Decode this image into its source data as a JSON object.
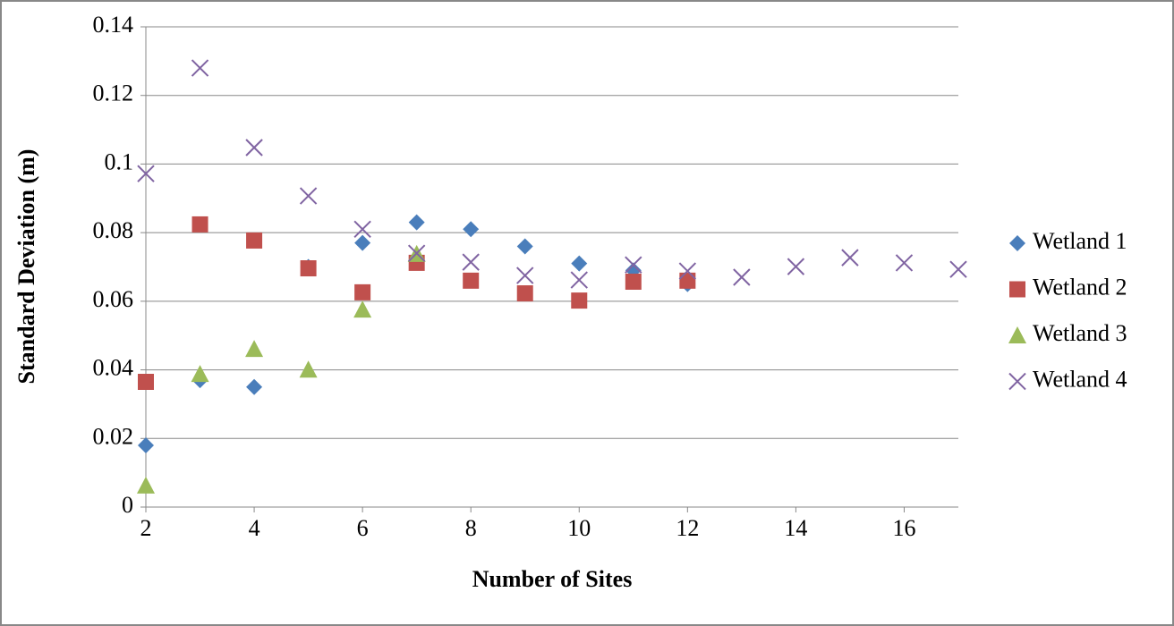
{
  "chart_data": {
    "type": "scatter",
    "x_label": "Number of Sites",
    "y_label": "Standard Deviation (m)",
    "xlim": [
      2,
      17
    ],
    "xticks": [
      2,
      4,
      6,
      8,
      10,
      12,
      14,
      16
    ],
    "ylim": [
      0,
      0.14
    ],
    "yticks": [
      0,
      0.02,
      0.04,
      0.06,
      0.08,
      0.1,
      0.12,
      0.14
    ],
    "grid": true,
    "legend": "right",
    "series": [
      {
        "name": "Wetland 1",
        "color": "#4a7ebb",
        "marker": "diamond",
        "x": [
          2,
          3,
          4,
          5,
          6,
          7,
          8,
          9,
          10,
          11,
          12
        ],
        "values": [
          0.018,
          0.037,
          0.035,
          0.07,
          0.077,
          0.083,
          0.081,
          0.076,
          0.071,
          0.069,
          0.065
        ]
      },
      {
        "name": "Wetland 2",
        "color": "#c0504d",
        "marker": "square",
        "x": [
          2,
          3,
          4,
          5,
          6,
          7,
          8,
          9,
          10,
          11,
          12
        ],
        "values": [
          0.0365,
          0.0824,
          0.0777,
          0.0696,
          0.0626,
          0.0712,
          0.066,
          0.0623,
          0.0602,
          0.0657,
          0.066
        ]
      },
      {
        "name": "Wetland 3",
        "color": "#9bbb59",
        "marker": "triangle",
        "x": [
          2,
          3,
          4,
          5,
          6,
          7
        ],
        "values": [
          0.0063,
          0.0388,
          0.0461,
          0.0401,
          0.0576,
          0.0738
        ]
      },
      {
        "name": "Wetland 4",
        "color": "#8064a2",
        "marker": "cross",
        "x": [
          2,
          3,
          4,
          5,
          6,
          7,
          8,
          9,
          10,
          11,
          12,
          13,
          14,
          15,
          16,
          17
        ],
        "values": [
          0.0972,
          0.128,
          0.1048,
          0.0907,
          0.081,
          0.074,
          0.0714,
          0.0675,
          0.0662,
          0.0706,
          0.0688,
          0.067,
          0.0701,
          0.0727,
          0.0712,
          0.0693
        ]
      }
    ]
  }
}
